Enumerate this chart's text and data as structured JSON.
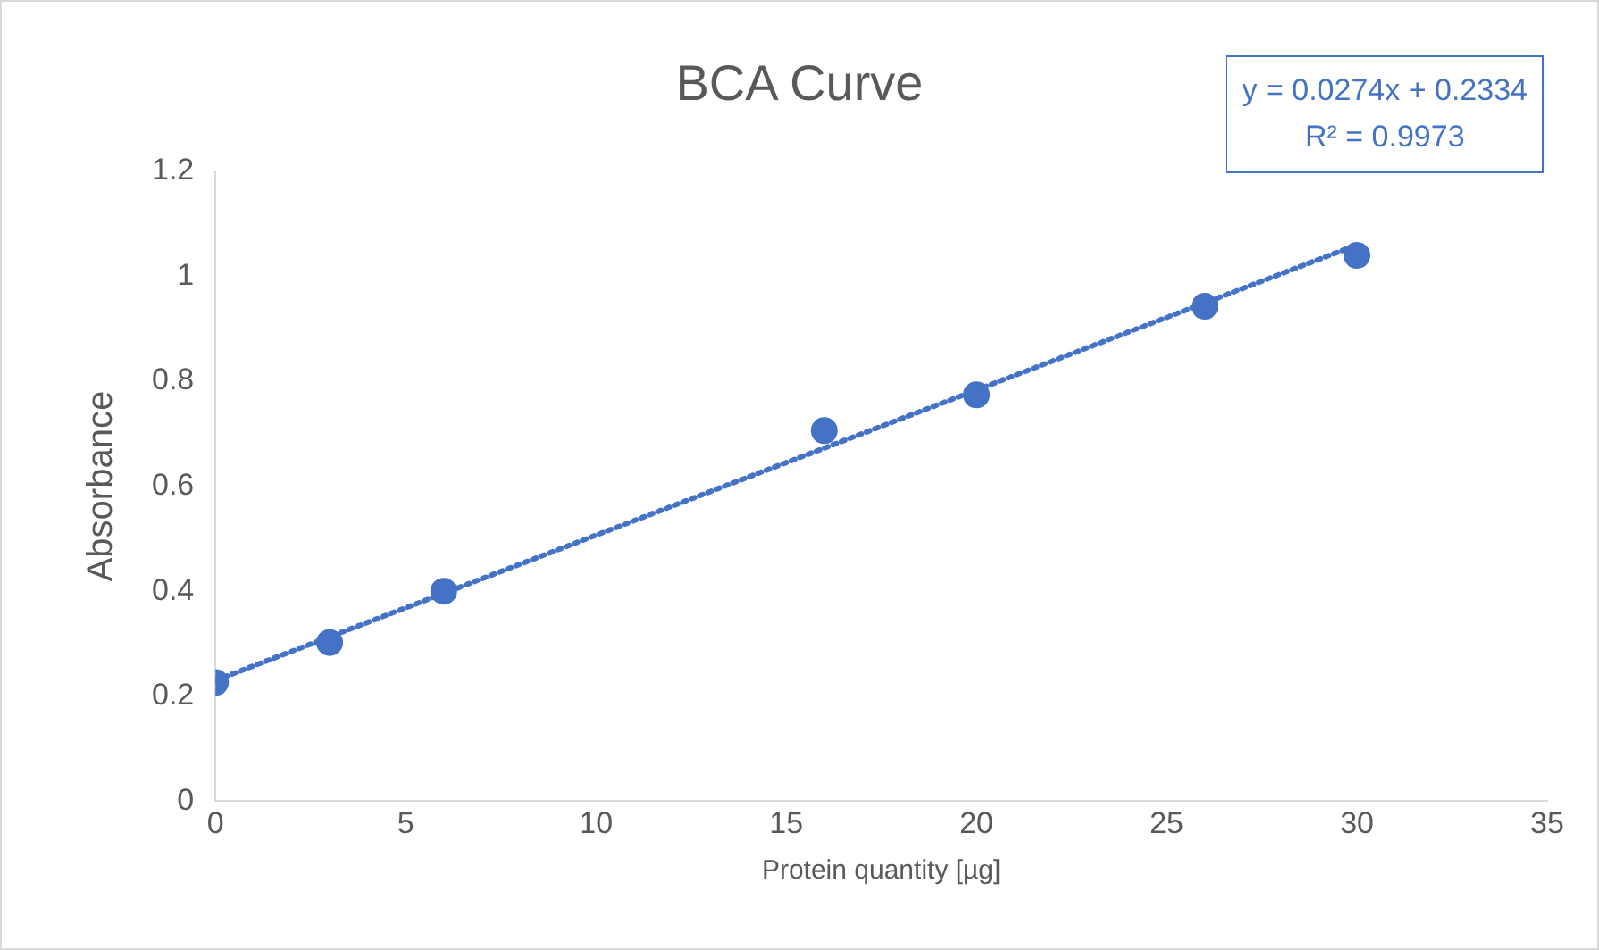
{
  "chart_data": {
    "type": "scatter",
    "title": "BCA Curve",
    "xlabel": "Protein quantity [µg]",
    "ylabel": "Absorbance",
    "x": [
      0,
      3,
      6,
      16,
      20,
      26,
      30
    ],
    "series": [
      {
        "type": "scatter",
        "color": "#4472c4",
        "marker": "circle",
        "values": [
          0.226,
          0.302,
          0.4,
          0.706,
          0.774,
          0.943,
          1.04
        ]
      },
      {
        "type": "line",
        "color": "#4472c4",
        "line_style": "dotted",
        "marker": "none",
        "x": [
          0,
          30
        ],
        "values": [
          0.23,
          1.06
        ]
      }
    ],
    "xlim": [
      0,
      35
    ],
    "xticks": [
      0,
      5,
      10,
      15,
      20,
      25,
      30,
      35
    ],
    "ylim": [
      0,
      1.2
    ],
    "yticks": [
      0,
      0.2,
      0.4,
      0.6,
      0.8,
      1,
      1.2
    ],
    "grid": false,
    "legend": false,
    "annotations": [
      "y = 0.0274x + 0.2334",
      "R² = 0.9973"
    ]
  }
}
